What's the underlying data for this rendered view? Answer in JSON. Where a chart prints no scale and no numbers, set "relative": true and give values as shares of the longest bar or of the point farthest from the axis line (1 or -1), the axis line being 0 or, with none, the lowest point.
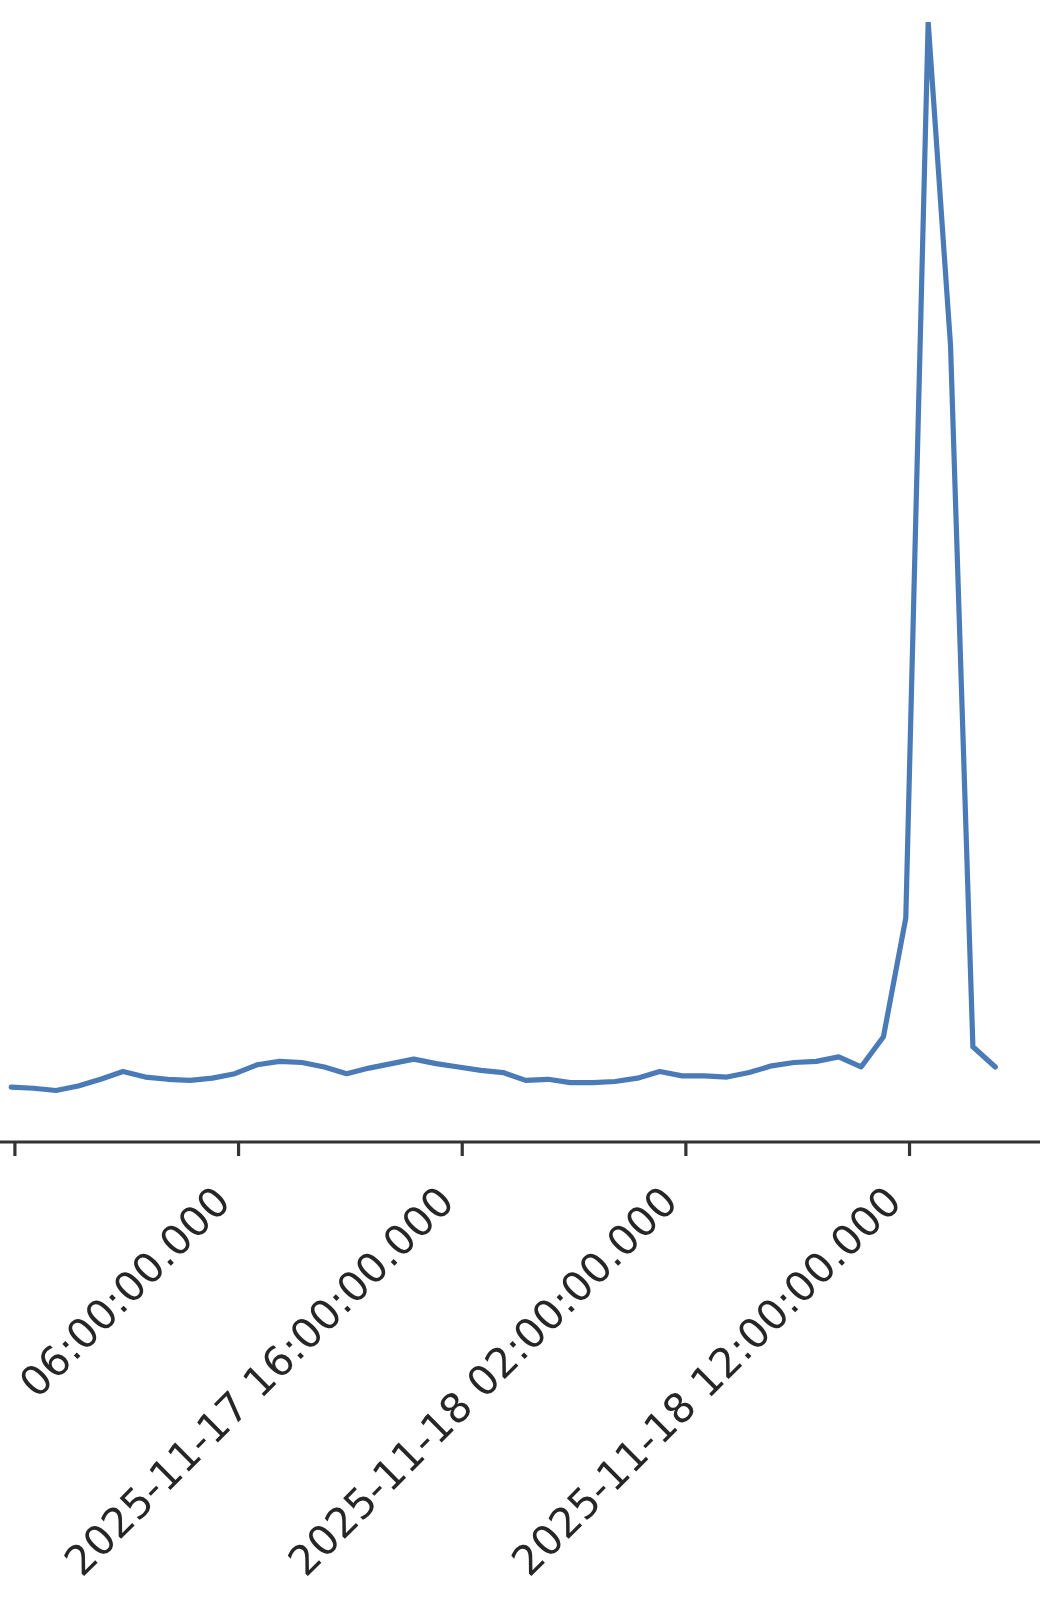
{
  "chart_data": {
    "type": "line",
    "relative": true,
    "color": "#4a7bb7",
    "marker": "none",
    "line_style": "solid",
    "x": [
      "2025-11-16T19:50",
      "2025-11-16T20:50",
      "2025-11-16T21:50",
      "2025-11-16T22:50",
      "2025-11-16T23:50",
      "2025-11-17T00:50",
      "2025-11-17T01:50",
      "2025-11-17T02:50",
      "2025-11-17T03:50",
      "2025-11-17T04:50",
      "2025-11-17T05:50",
      "2025-11-17T06:50",
      "2025-11-17T07:50",
      "2025-11-17T08:50",
      "2025-11-17T09:50",
      "2025-11-17T10:50",
      "2025-11-17T11:50",
      "2025-11-17T12:50",
      "2025-11-17T13:50",
      "2025-11-17T14:50",
      "2025-11-17T15:50",
      "2025-11-17T16:50",
      "2025-11-17T17:50",
      "2025-11-17T18:50",
      "2025-11-17T19:50",
      "2025-11-17T20:50",
      "2025-11-17T21:50",
      "2025-11-17T22:50",
      "2025-11-17T23:50",
      "2025-11-18T00:50",
      "2025-11-18T01:50",
      "2025-11-18T02:50",
      "2025-11-18T03:50",
      "2025-11-18T04:50",
      "2025-11-18T05:50",
      "2025-11-18T06:50",
      "2025-11-18T07:50",
      "2025-11-18T08:50",
      "2025-11-18T09:50",
      "2025-11-18T10:50",
      "2025-11-18T11:50",
      "2025-11-18T12:50",
      "2025-11-18T13:50",
      "2025-11-18T14:50",
      "2025-11-18T15:50"
    ],
    "values": [
      0.049,
      0.048,
      0.046,
      0.05,
      0.056,
      0.063,
      0.058,
      0.056,
      0.055,
      0.057,
      0.061,
      0.069,
      0.072,
      0.071,
      0.067,
      0.061,
      0.066,
      0.07,
      0.074,
      0.07,
      0.067,
      0.064,
      0.062,
      0.055,
      0.056,
      0.053,
      0.053,
      0.054,
      0.057,
      0.063,
      0.059,
      0.059,
      0.058,
      0.062,
      0.068,
      0.071,
      0.072,
      0.076,
      0.067,
      0.094,
      0.2,
      1,
      0.711,
      0.085,
      0.067
    ],
    "xlim": [
      "2025-11-16T19:20",
      "2025-11-18T17:50"
    ],
    "xticks": [
      {
        "value": "2025-11-16T20:00",
        "label": null
      },
      {
        "value": "2025-11-17T06:00",
        "label": "06:00:00.000"
      },
      {
        "value": "2025-11-17T16:00",
        "label": "2025-11-17 16:00:00.000"
      },
      {
        "value": "2025-11-18T02:00",
        "label": "2025-11-18 02:00:00.000"
      },
      {
        "value": "2025-11-18T12:00",
        "label": "2025-11-18 12:00:00.000"
      }
    ]
  }
}
